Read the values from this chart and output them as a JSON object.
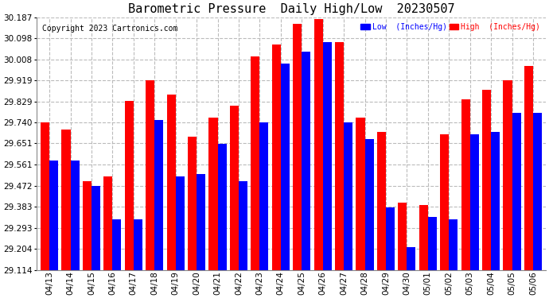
{
  "title": "Barometric Pressure  Daily High/Low  20230507",
  "copyright": "Copyright 2023 Cartronics.com",
  "legend_low": "Low  (Inches/Hg)",
  "legend_high": "High  (Inches/Hg)",
  "categories": [
    "04/13",
    "04/14",
    "04/15",
    "04/16",
    "04/17",
    "04/18",
    "04/19",
    "04/20",
    "04/21",
    "04/22",
    "04/23",
    "04/24",
    "04/25",
    "04/26",
    "04/27",
    "04/28",
    "04/29",
    "04/30",
    "05/01",
    "05/02",
    "05/03",
    "05/04",
    "05/05",
    "05/06"
  ],
  "low_values": [
    29.58,
    29.58,
    29.47,
    29.33,
    29.33,
    29.75,
    29.51,
    29.52,
    29.65,
    29.49,
    29.74,
    29.99,
    30.04,
    30.08,
    29.74,
    29.67,
    29.38,
    29.21,
    29.34,
    29.33,
    29.69,
    29.7,
    29.78,
    29.78
  ],
  "high_values": [
    29.74,
    29.71,
    29.49,
    29.51,
    29.83,
    29.92,
    29.86,
    29.68,
    29.76,
    29.81,
    30.02,
    30.07,
    30.16,
    30.18,
    30.08,
    29.76,
    29.7,
    29.4,
    29.39,
    29.69,
    29.84,
    29.88,
    29.92,
    29.98
  ],
  "ymin": 29.114,
  "ymax": 30.187,
  "yticks": [
    29.114,
    29.204,
    29.293,
    29.383,
    29.472,
    29.561,
    29.651,
    29.74,
    29.829,
    29.919,
    30.008,
    30.098,
    30.187
  ],
  "low_color": "#0000ff",
  "high_color": "#ff0000",
  "bg_color": "#ffffff",
  "grid_color": "#bbbbbb",
  "title_fontsize": 11,
  "tick_fontsize": 7.5,
  "copyright_fontsize": 7
}
